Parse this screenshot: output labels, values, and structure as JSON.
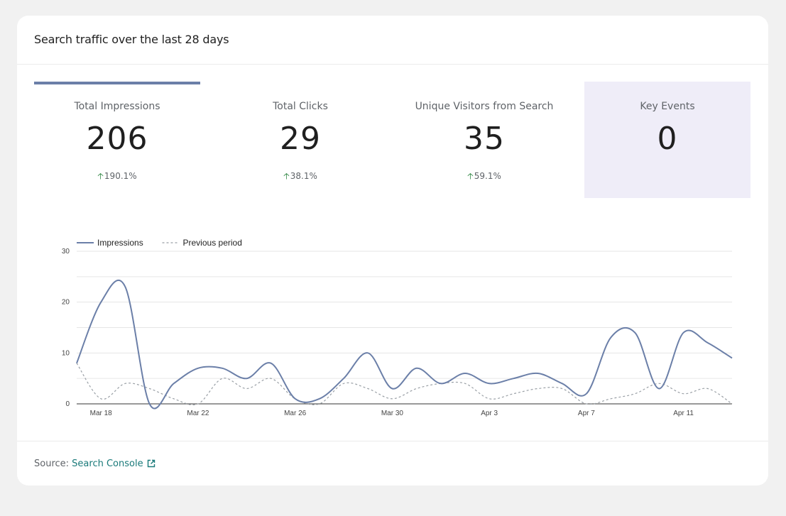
{
  "card": {
    "title": "Search traffic over the last 28 days"
  },
  "tabs": [
    {
      "label": "Total Impressions",
      "value": "206",
      "change": "190.1%",
      "selected": true,
      "highlight": false
    },
    {
      "label": "Total Clicks",
      "value": "29",
      "change": "38.1%",
      "selected": false,
      "highlight": false
    },
    {
      "label": "Unique Visitors from Search",
      "value": "35",
      "change": "59.1%",
      "selected": false,
      "highlight": false
    },
    {
      "label": "Key Events",
      "value": "0",
      "change": "",
      "selected": false,
      "highlight": true
    }
  ],
  "colors": {
    "accent": "#6b7fa8",
    "increase": "#1e7d34",
    "highlight_bg": "#efedf8",
    "link": "#1a7a7a"
  },
  "chart_data": {
    "type": "line",
    "ylim": [
      0,
      30
    ],
    "yticks": [
      "0",
      "10",
      "20",
      "30"
    ],
    "xtick_labels": [
      {
        "index": 1,
        "label": "Mar 18"
      },
      {
        "index": 5,
        "label": "Mar 22"
      },
      {
        "index": 9,
        "label": "Mar 26"
      },
      {
        "index": 13,
        "label": "Mar 30"
      },
      {
        "index": 17,
        "label": "Apr 3"
      },
      {
        "index": 21,
        "label": "Apr 7"
      },
      {
        "index": 25,
        "label": "Apr 11"
      }
    ],
    "legend": {
      "position": "top-left"
    },
    "series": [
      {
        "name": "Impressions",
        "style": "solid",
        "color": "#6b7fa8",
        "values": [
          8,
          20,
          23,
          0,
          4,
          7,
          7,
          5,
          8,
          1,
          1,
          5,
          10,
          3,
          7,
          4,
          6,
          4,
          5,
          6,
          4,
          2,
          13,
          14,
          3,
          14,
          12,
          9
        ]
      },
      {
        "name": "Previous period",
        "style": "dashed",
        "color": "#9aa0a6",
        "values": [
          8,
          1,
          4,
          3,
          1,
          0,
          5,
          3,
          5,
          1,
          0,
          4,
          3,
          1,
          3,
          4,
          4,
          1,
          2,
          3,
          3,
          0,
          1,
          2,
          4,
          2,
          3,
          0
        ]
      }
    ]
  },
  "footer": {
    "source_prefix": "Source:",
    "source_link": "Search Console"
  }
}
